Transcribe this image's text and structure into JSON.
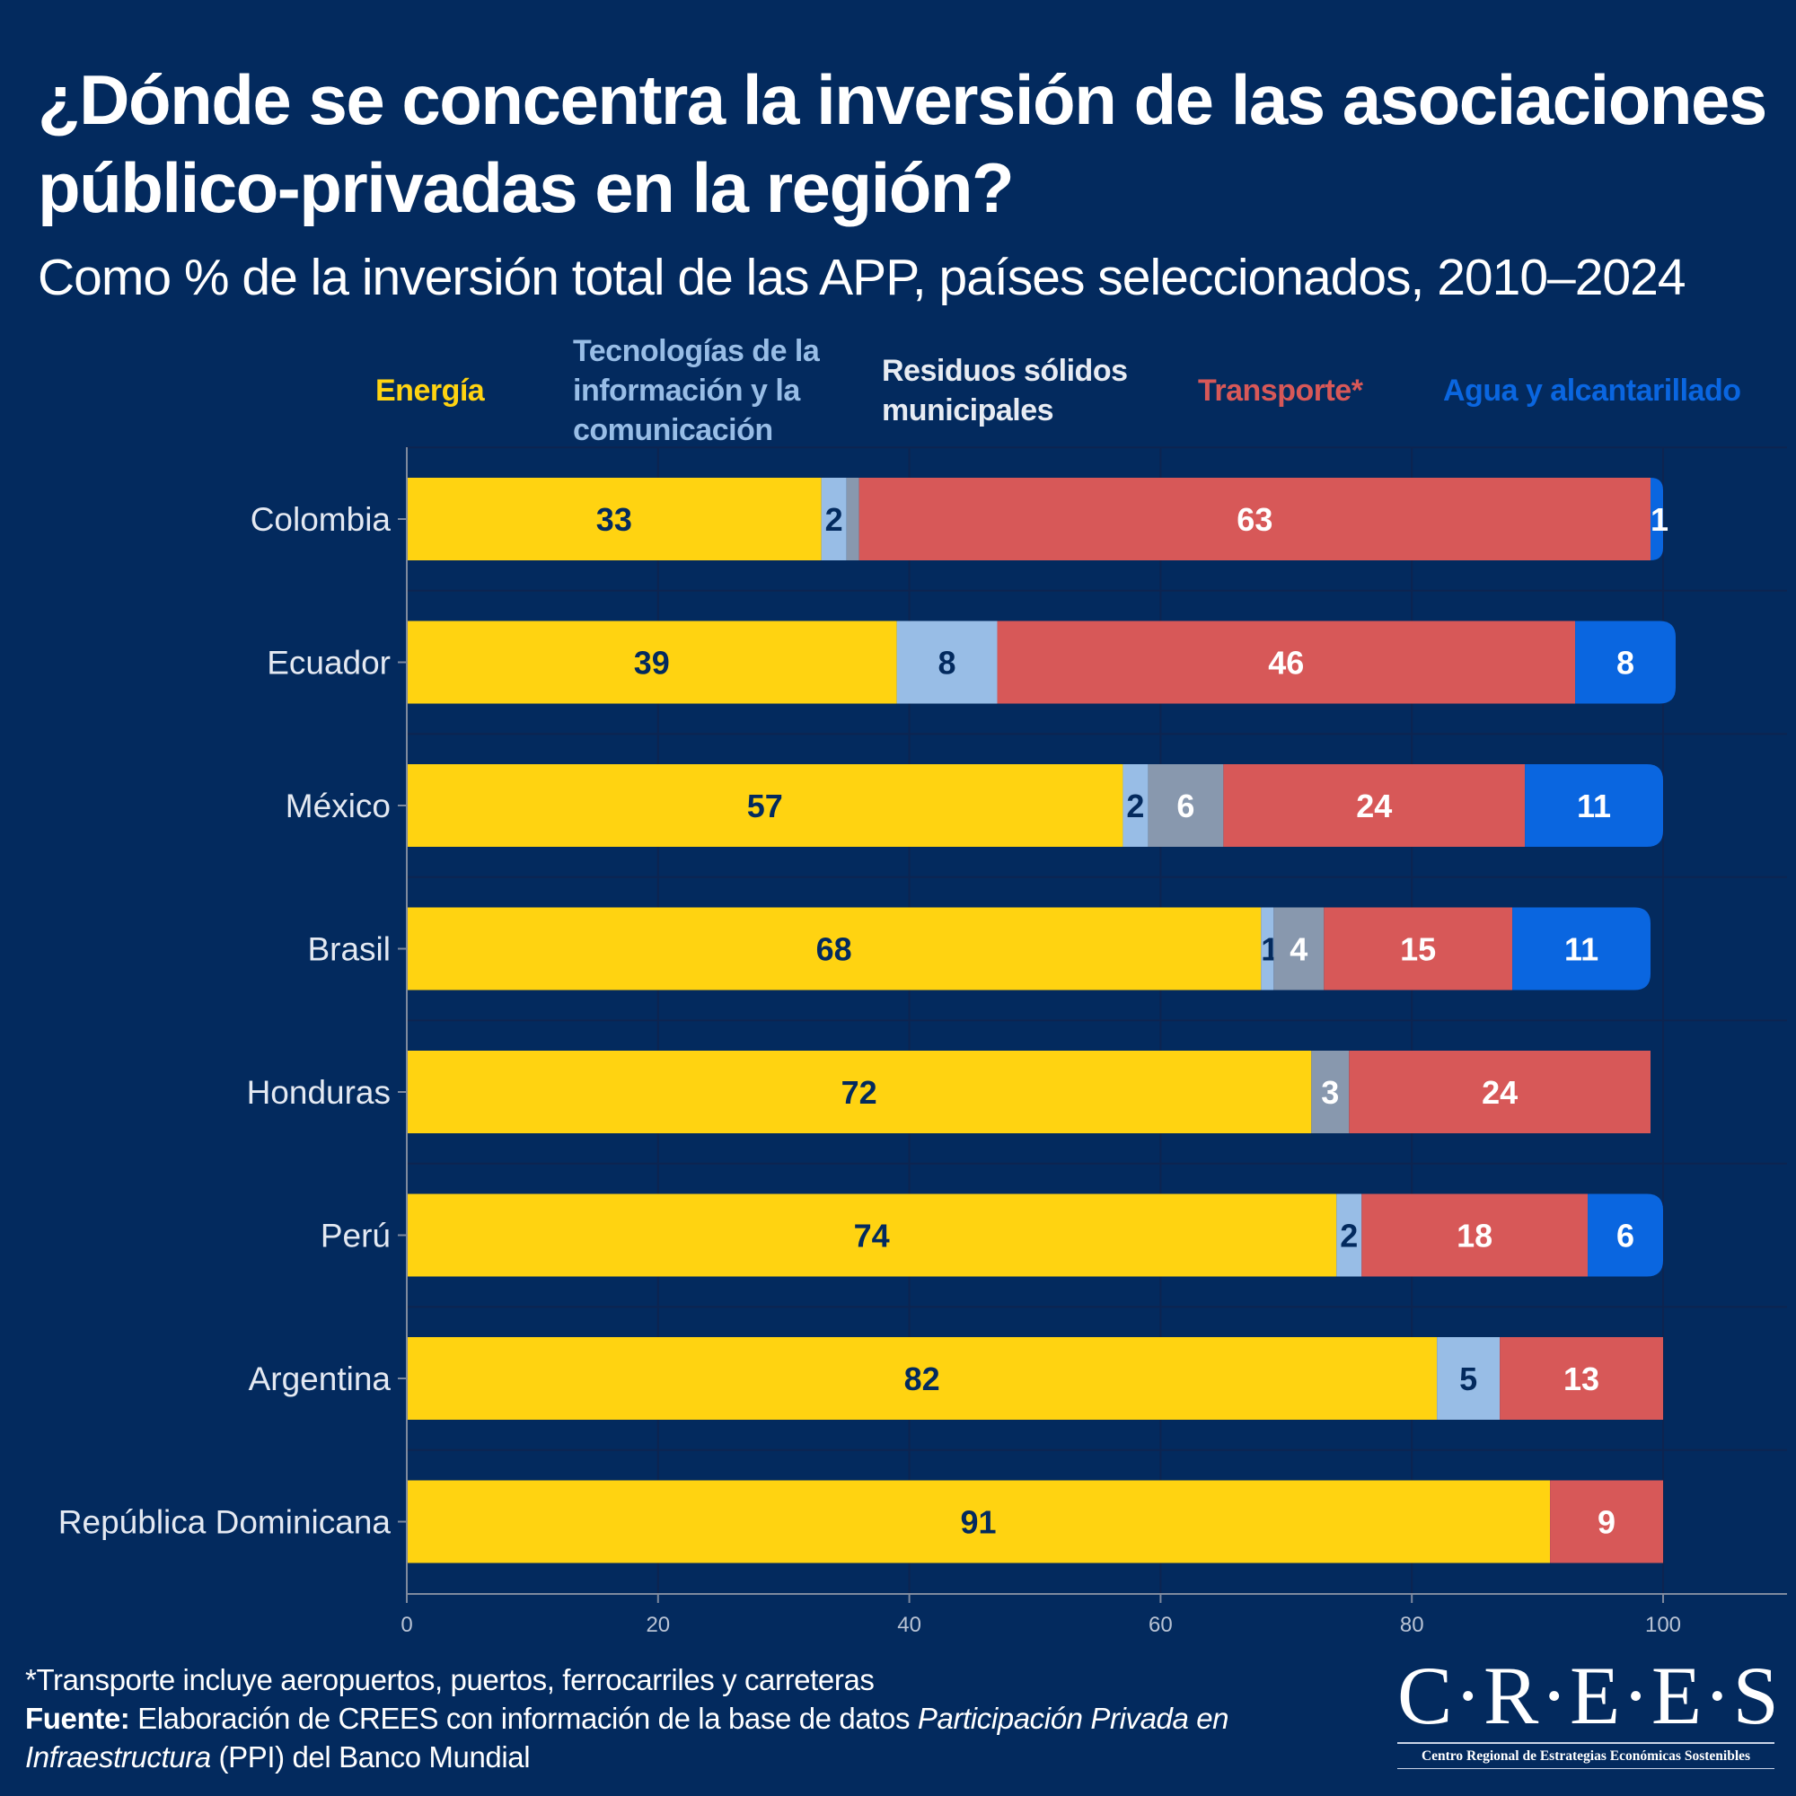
{
  "header": {
    "title": "¿Dónde se concentra la inversión de las asociaciones público-privadas en la región?",
    "subtitle": "Como % de la inversión total de las APP, países seleccionados, 2010–2024"
  },
  "colors": {
    "background": "#032a5e",
    "energia": "#ffd311",
    "tic": "#98bde6",
    "residuos": "#8898ae",
    "transporte": "#d75858",
    "agua": "#0a66e0",
    "label_dark": "#032a5e",
    "label_light": "#ffffff",
    "axis": "#7f8a9e",
    "grid": "#0d2450"
  },
  "legend": [
    {
      "key": "energia",
      "label": "Energía",
      "color": "#ffd311"
    },
    {
      "key": "tic",
      "label": "Tecnologías de la información y la comunicación",
      "color": "#98bde6"
    },
    {
      "key": "residuos",
      "label": "Residuos sólidos municipales",
      "color": "#e8ecf3"
    },
    {
      "key": "transporte",
      "label": "Transporte*",
      "color": "#d75858"
    },
    {
      "key": "agua",
      "label": "Agua y alcantarillado",
      "color": "#0a66e0"
    }
  ],
  "chart_data": {
    "type": "bar",
    "orientation": "horizontal",
    "stacked": true,
    "title": "¿Dónde se concentra la inversión de las asociaciones público-privadas en la región?",
    "subtitle": "Como % de la inversión total de las APP, países seleccionados, 2010–2024",
    "xlabel": "",
    "ylabel": "",
    "xlim": [
      0,
      100
    ],
    "xticks": [
      0,
      20,
      40,
      60,
      80,
      100
    ],
    "grid": true,
    "legend_position": "top",
    "categories": [
      "Colombia",
      "Ecuador",
      "México",
      "Brasil",
      "Honduras",
      "Perú",
      "Argentina",
      "República Dominicana"
    ],
    "series": [
      {
        "name": "Energía",
        "key": "energia",
        "values": [
          33,
          39,
          57,
          68,
          72,
          74,
          82,
          91
        ]
      },
      {
        "name": "Tecnologías de la información y la comunicación",
        "key": "tic",
        "values": [
          2,
          8,
          2,
          1,
          0,
          2,
          5,
          0
        ]
      },
      {
        "name": "Residuos sólidos municipales",
        "key": "residuos",
        "values": [
          1,
          0,
          6,
          4,
          3,
          0,
          0,
          0
        ]
      },
      {
        "name": "Transporte*",
        "key": "transporte",
        "values": [
          63,
          46,
          24,
          15,
          24,
          18,
          13,
          9
        ]
      },
      {
        "name": "Agua y alcantarillado",
        "key": "agua",
        "values": [
          1,
          8,
          11,
          11,
          0,
          6,
          0,
          0
        ]
      }
    ]
  },
  "footer": {
    "note": "*Transporte incluye aeropuertos, puertos, ferrocarriles y carreteras",
    "source_label": "Fuente:",
    "source_text_1": " Elaboración de CREES con información de la base de datos ",
    "source_italic_1": "Participación Privada en Infraestructura",
    "source_text_2": " (PPI) del Banco Mundial"
  },
  "logo": {
    "mark": "C·R·E·E·S",
    "subtitle": "Centro Regional de Estrategias Económicas Sostenibles"
  }
}
